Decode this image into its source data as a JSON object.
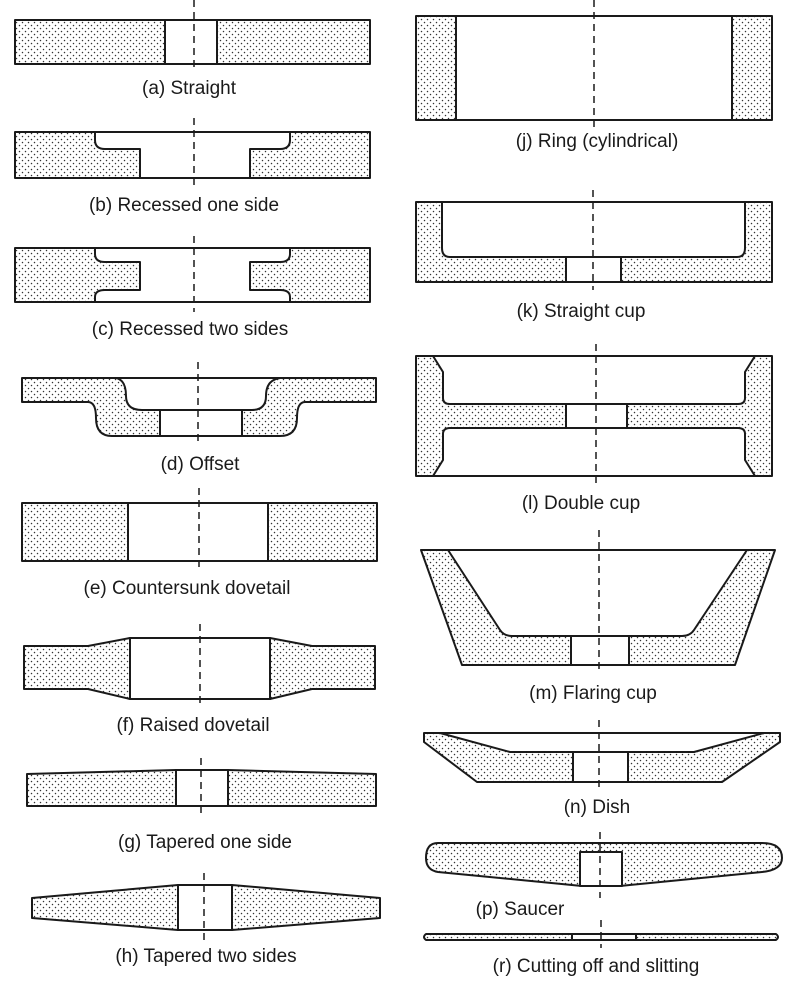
{
  "figure": {
    "wheels": [
      {
        "id": "a",
        "caption": "(a) Straight"
      },
      {
        "id": "b",
        "caption": "(b) Recessed one side"
      },
      {
        "id": "c",
        "caption": "(c) Recessed two sides"
      },
      {
        "id": "d",
        "caption": "(d) Offset"
      },
      {
        "id": "e",
        "caption": "(e) Countersunk dovetail"
      },
      {
        "id": "f",
        "caption": "(f) Raised dovetail"
      },
      {
        "id": "g",
        "caption": "(g) Tapered one side"
      },
      {
        "id": "h",
        "caption": "(h) Tapered two sides"
      },
      {
        "id": "j",
        "caption": "(j) Ring (cylindrical)"
      },
      {
        "id": "k",
        "caption": "(k) Straight cup"
      },
      {
        "id": "l",
        "caption": "(l) Double cup"
      },
      {
        "id": "m",
        "caption": "(m) Flaring cup"
      },
      {
        "id": "n",
        "caption": "(n) Dish"
      },
      {
        "id": "p",
        "caption": "(p) Saucer"
      },
      {
        "id": "r",
        "caption": "(r) Cutting off and slitting"
      }
    ]
  }
}
